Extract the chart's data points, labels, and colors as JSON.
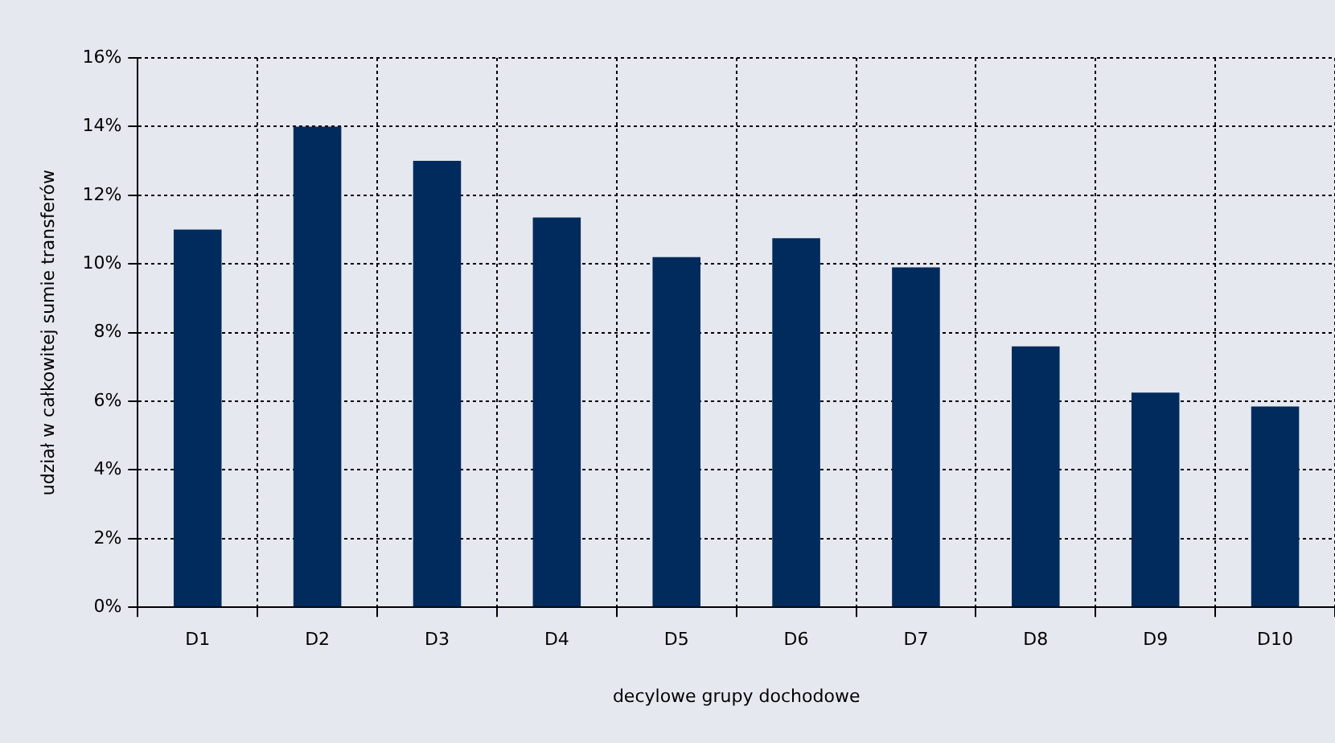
{
  "chart_data": {
    "type": "bar",
    "xlabel": "decylowe grupy dochodowe",
    "ylabel": "udział w całkowitej sumie transferów",
    "categories": [
      "D1",
      "D2",
      "D3",
      "D4",
      "D5",
      "D6",
      "D7",
      "D8",
      "D9",
      "D10"
    ],
    "values": [
      11.0,
      14.0,
      13.0,
      11.35,
      10.2,
      10.75,
      9.9,
      7.6,
      6.25,
      5.85
    ],
    "color": "#002b5c",
    "ylim": [
      0,
      16
    ],
    "yticks": [
      {
        "value": 0,
        "label": "0%"
      },
      {
        "value": 2,
        "label": "2%"
      },
      {
        "value": 4,
        "label": "4%"
      },
      {
        "value": 6,
        "label": "6%"
      },
      {
        "value": 8,
        "label": "8%"
      },
      {
        "value": 10,
        "label": "10%"
      },
      {
        "value": 12,
        "label": "12%"
      },
      {
        "value": 14,
        "label": "14%"
      },
      {
        "value": 16,
        "label": "16%"
      }
    ],
    "grid": true,
    "legend": false
  }
}
